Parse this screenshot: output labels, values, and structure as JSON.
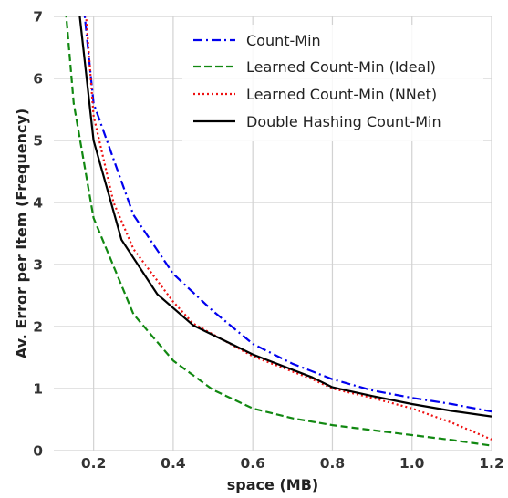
{
  "chart_data": {
    "type": "line",
    "title": "",
    "xlabel": "space (MB)",
    "ylabel": "Av. Error per Item (Frequency)",
    "xlim": [
      0.1,
      1.2
    ],
    "ylim": [
      0,
      7
    ],
    "xticks": [
      0.2,
      0.4,
      0.6,
      0.8,
      1.0,
      1.2
    ],
    "xtick_labels": [
      "0.2",
      "0.4",
      "0.6",
      "0.8",
      "1.0",
      "1.2"
    ],
    "yticks": [
      0,
      1,
      2,
      3,
      4,
      5,
      6,
      7
    ],
    "ytick_labels": [
      "0",
      "1",
      "2",
      "3",
      "4",
      "5",
      "6",
      "7"
    ],
    "grid": true,
    "legend_position": "top-right",
    "series": [
      {
        "name": "Count-Min",
        "color": "#0000ee",
        "dash": "dashdot",
        "x": [
          0.17,
          0.2,
          0.3,
          0.4,
          0.5,
          0.6,
          0.7,
          0.8,
          0.9,
          1.0,
          1.1,
          1.2
        ],
        "y": [
          7.5,
          5.6,
          3.8,
          2.85,
          2.25,
          1.72,
          1.4,
          1.15,
          0.97,
          0.85,
          0.75,
          0.63
        ]
      },
      {
        "name": "Learned Count-Min (Ideal)",
        "color": "#118811",
        "dash": "dashed",
        "x": [
          0.13,
          0.15,
          0.2,
          0.3,
          0.4,
          0.5,
          0.6,
          0.7,
          0.8,
          0.9,
          1.0,
          1.1,
          1.2
        ],
        "y": [
          7.1,
          5.6,
          3.75,
          2.2,
          1.45,
          0.98,
          0.68,
          0.52,
          0.41,
          0.33,
          0.25,
          0.17,
          0.08
        ]
      },
      {
        "name": "Learned Count-Min (NNet)",
        "color": "#ee1111",
        "dash": "dotted",
        "x": [
          0.18,
          0.2,
          0.25,
          0.3,
          0.4,
          0.45,
          0.6,
          0.75,
          0.8,
          0.9,
          1.0,
          1.1,
          1.2
        ],
        "y": [
          7.1,
          5.4,
          4.0,
          3.25,
          2.4,
          2.05,
          1.52,
          1.15,
          1.0,
          0.85,
          0.68,
          0.45,
          0.18
        ]
      },
      {
        "name": "Double Hashing Count-Min",
        "color": "#000000",
        "dash": "solid",
        "x": [
          0.16,
          0.2,
          0.27,
          0.36,
          0.45,
          0.6,
          0.75,
          0.8,
          0.9,
          1.0,
          1.1,
          1.2
        ],
        "y": [
          7.3,
          5.0,
          3.4,
          2.52,
          2.02,
          1.55,
          1.18,
          1.02,
          0.88,
          0.75,
          0.64,
          0.55
        ]
      }
    ]
  }
}
